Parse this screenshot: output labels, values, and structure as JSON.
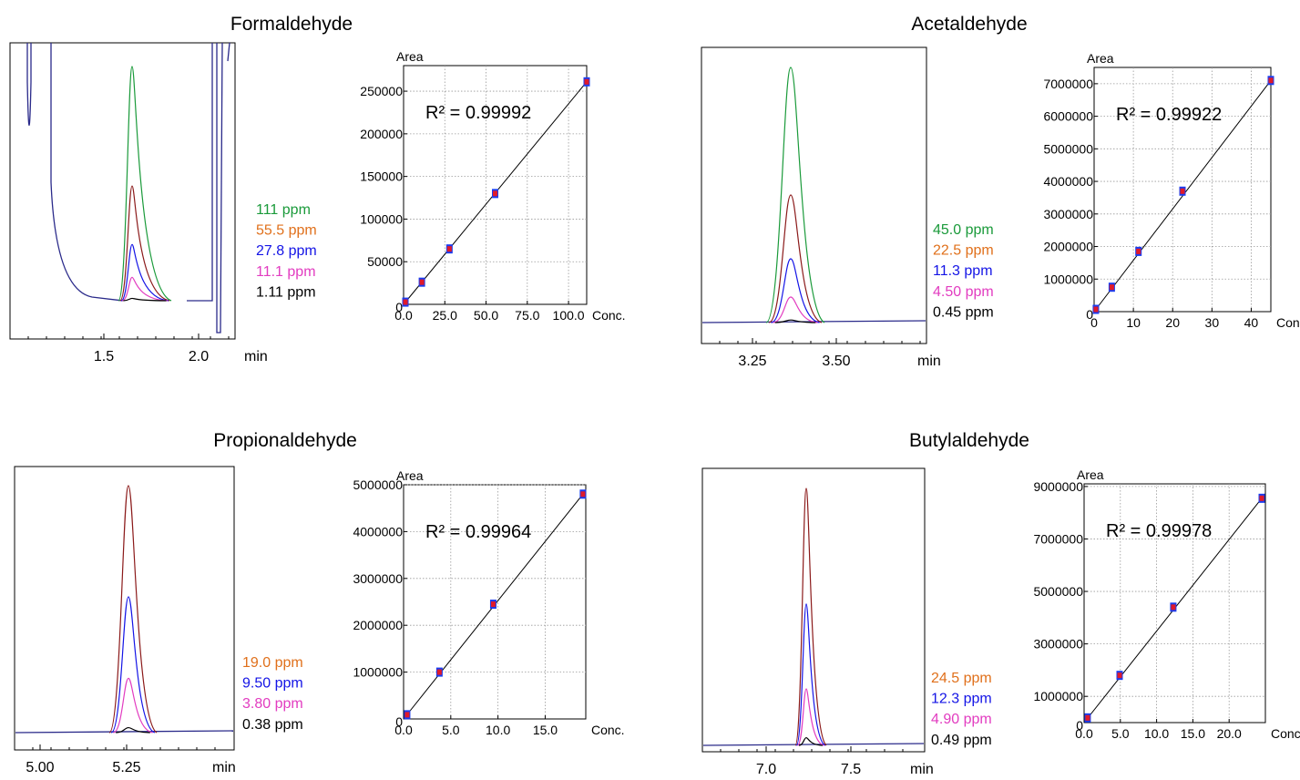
{
  "chart_data": [
    {
      "name": "Formaldehyde",
      "type": "line",
      "title": "Formaldehyde",
      "chromatogram": {
        "xlabel": "min",
        "x_ticks": [
          "1.5",
          "2.0"
        ],
        "xlim": [
          1.1,
          2.2
        ],
        "peak_time_min": 1.67,
        "legend": [
          {
            "label": "111 ppm",
            "color": "#1a9a3a",
            "rel_height": 1.0
          },
          {
            "label": "55.5 ppm",
            "color": "#e0701b",
            "rel_height": 0.49
          },
          {
            "label": "27.8 ppm",
            "color": "#1414e6",
            "rel_height": 0.24
          },
          {
            "label": "11.1 ppm",
            "color": "#e23cc0",
            "rel_height": 0.1
          },
          {
            "label": "1.11 ppm",
            "color": "#000000",
            "rel_height": 0.01
          }
        ]
      },
      "calibration": {
        "type": "scatter",
        "ylabel": "Area",
        "xlabel": "Conc.",
        "r2_label": "R² = 0.99992",
        "y_ticks": [
          "0",
          "50000",
          "100000",
          "150000",
          "200000",
          "250000"
        ],
        "x_ticks": [
          "0.0",
          "25.0",
          "50.0",
          "75.0",
          "100.0"
        ],
        "xlim": [
          0,
          111
        ],
        "ylim": [
          0,
          280000
        ],
        "points": [
          {
            "x": 1.11,
            "y": 2600
          },
          {
            "x": 11.1,
            "y": 26000
          },
          {
            "x": 27.8,
            "y": 65000
          },
          {
            "x": 55.5,
            "y": 130000
          },
          {
            "x": 111,
            "y": 261000
          }
        ]
      }
    },
    {
      "name": "Acetaldehyde",
      "type": "line",
      "title": "Acetaldehyde",
      "chromatogram": {
        "xlabel": "min",
        "x_ticks": [
          "3.25",
          "3.50"
        ],
        "xlim": [
          3.0,
          3.8
        ],
        "peak_time_min": 3.36,
        "legend": [
          {
            "label": "45.0 ppm",
            "color": "#1a9a3a",
            "rel_height": 1.0
          },
          {
            "label": "22.5 ppm",
            "color": "#e0701b",
            "rel_height": 0.5
          },
          {
            "label": "11.3 ppm",
            "color": "#1414e6",
            "rel_height": 0.25
          },
          {
            "label": "4.50 ppm",
            "color": "#e23cc0",
            "rel_height": 0.1
          },
          {
            "label": "0.45 ppm",
            "color": "#000000",
            "rel_height": 0.01
          }
        ]
      },
      "calibration": {
        "type": "scatter",
        "ylabel": "Area",
        "xlabel": "Conc.",
        "r2_label": "R² = 0.99922",
        "y_ticks": [
          "0",
          "1000000",
          "2000000",
          "3000000",
          "4000000",
          "5000000",
          "6000000",
          "7000000"
        ],
        "x_ticks": [
          "0",
          "10",
          "20",
          "30",
          "40"
        ],
        "xlim": [
          0,
          45
        ],
        "ylim": [
          0,
          7500000
        ],
        "points": [
          {
            "x": 0.45,
            "y": 70000
          },
          {
            "x": 4.5,
            "y": 750000
          },
          {
            "x": 11.3,
            "y": 1850000
          },
          {
            "x": 22.5,
            "y": 3700000
          },
          {
            "x": 45.0,
            "y": 7100000
          }
        ]
      }
    },
    {
      "name": "Propionaldehyde",
      "type": "line",
      "title": "Propionaldehyde",
      "chromatogram": {
        "xlabel": "min",
        "x_ticks": [
          "5.00",
          "5.25"
        ],
        "xlim": [
          4.95,
          5.5
        ],
        "peak_time_min": 5.28,
        "legend": [
          {
            "label": "19.0 ppm",
            "color": "#e0701b",
            "rel_height": 1.0
          },
          {
            "label": "9.50 ppm",
            "color": "#1414e6",
            "rel_height": 0.55
          },
          {
            "label": "3.80 ppm",
            "color": "#e23cc0",
            "rel_height": 0.22
          },
          {
            "label": "0.38 ppm",
            "color": "#000000",
            "rel_height": 0.02
          }
        ]
      },
      "calibration": {
        "type": "scatter",
        "ylabel": "Area",
        "xlabel": "Conc.",
        "r2_label": "R² = 0.99964",
        "y_ticks": [
          "0",
          "1000000",
          "2000000",
          "3000000",
          "4000000",
          "5000000"
        ],
        "x_ticks": [
          "0.0",
          "5.0",
          "10.0",
          "15.0"
        ],
        "xlim": [
          0,
          19.3
        ],
        "ylim": [
          0,
          5000000
        ],
        "points": [
          {
            "x": 0.38,
            "y": 90000
          },
          {
            "x": 3.8,
            "y": 1000000
          },
          {
            "x": 9.5,
            "y": 2450000
          },
          {
            "x": 19.0,
            "y": 4800000
          }
        ]
      }
    },
    {
      "name": "Butylaldehyde",
      "type": "line",
      "title": "Butylaldehyde",
      "chromatogram": {
        "xlabel": "min",
        "x_ticks": [
          "7.0",
          "7.5"
        ],
        "xlim": [
          6.5,
          8.1
        ],
        "peak_time_min": 7.3,
        "legend": [
          {
            "label": "24.5 ppm",
            "color": "#e0701b",
            "rel_height": 1.0
          },
          {
            "label": "12.3 ppm",
            "color": "#1414e6",
            "rel_height": 0.55
          },
          {
            "label": "4.90 ppm",
            "color": "#e23cc0",
            "rel_height": 0.22
          },
          {
            "label": "0.49 ppm",
            "color": "#000000",
            "rel_height": 0.03
          }
        ]
      },
      "calibration": {
        "type": "scatter",
        "ylabel": "Area",
        "xlabel": "Conc.",
        "r2_label": "R² = 0.99978",
        "y_ticks": [
          "0",
          "1000000",
          "3000000",
          "5000000",
          "7000000",
          "9000000"
        ],
        "x_ticks": [
          "0.0",
          "5.0",
          "10.0",
          "15.0",
          "20.0"
        ],
        "xlim": [
          0,
          25
        ],
        "ylim": [
          0,
          9100000
        ],
        "points": [
          {
            "x": 0.49,
            "y": 180000
          },
          {
            "x": 4.9,
            "y": 1800000
          },
          {
            "x": 12.3,
            "y": 4400000
          },
          {
            "x": 24.5,
            "y": 8550000
          }
        ]
      }
    }
  ]
}
